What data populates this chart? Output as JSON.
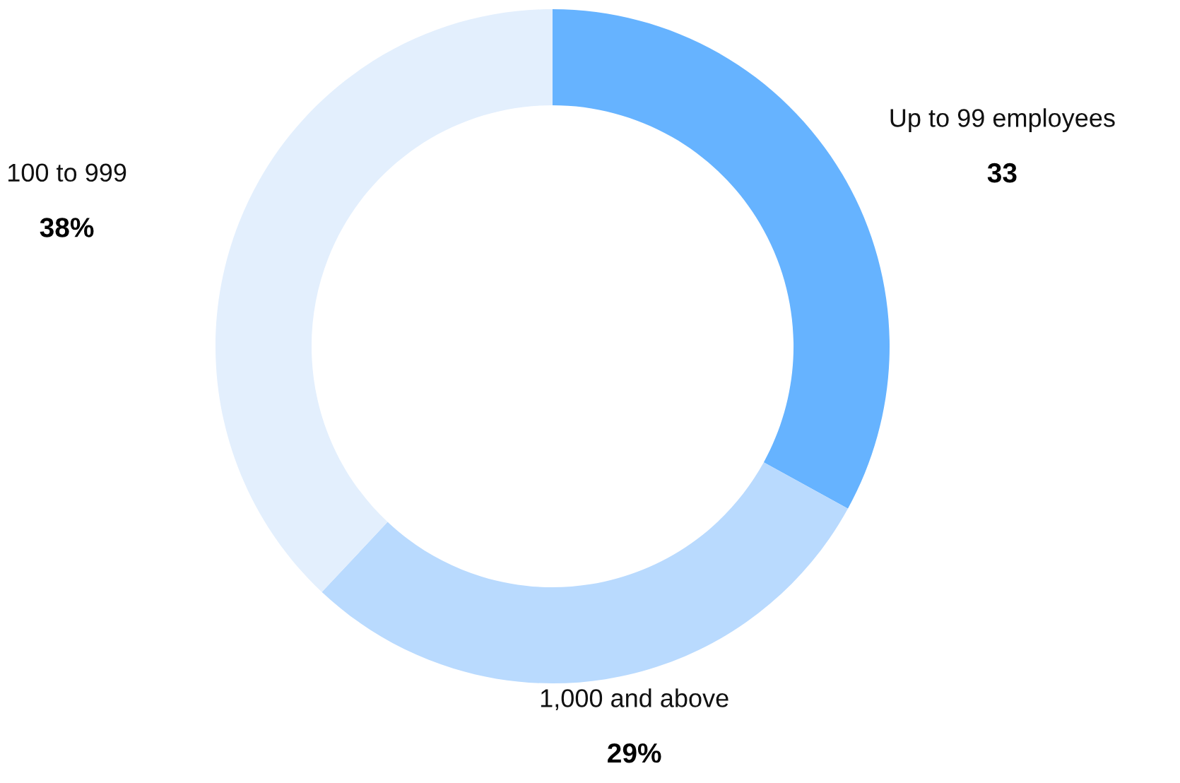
{
  "chart_data": {
    "type": "donut",
    "categories": [
      "Up to 99 employees",
      "1,000 and above",
      "100 to 999"
    ],
    "values": [
      33,
      29,
      38
    ],
    "value_labels": [
      "33",
      "29%",
      "38%"
    ],
    "colors": [
      "#66b3ff",
      "#b9dafe",
      "#e3effd"
    ],
    "legend": false
  }
}
